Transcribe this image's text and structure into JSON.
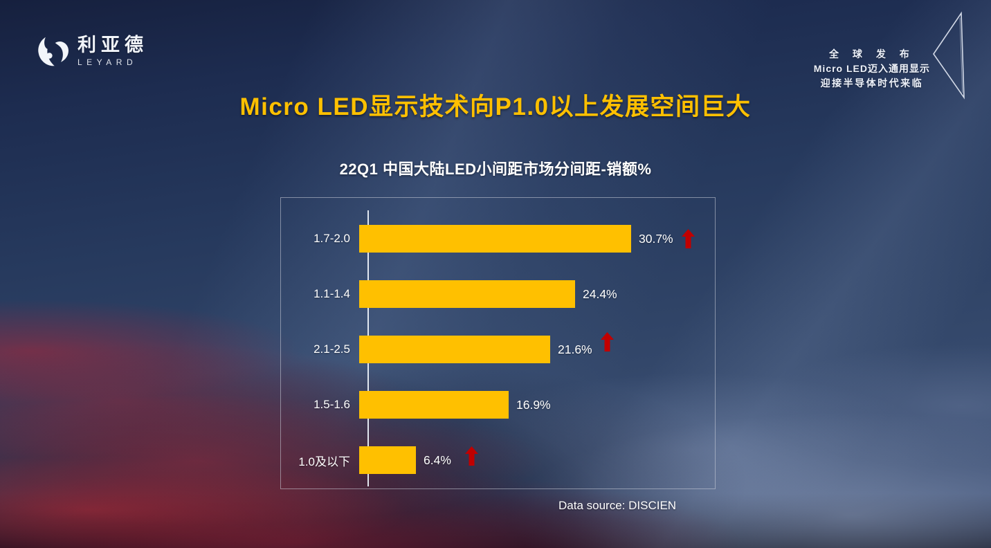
{
  "logo": {
    "name_cn": "利亚德",
    "name_en": "LEYARD"
  },
  "badge": {
    "line1": "全 球 发 布",
    "line2": "Micro LED迈入通用显示",
    "line3": "迎接半导体时代来临"
  },
  "title": "Micro LED显示技术向P1.0以上发展空间巨大",
  "data_source": "Data source: DISCIEN",
  "colors": {
    "bar": "#FFC000",
    "arrow": "#C00000",
    "title": "#FFC000",
    "text": "#FFFFFF"
  },
  "chart_data": {
    "type": "bar",
    "orientation": "horizontal",
    "title": "22Q1 中国大陆LED小间距市场分间距-销额%",
    "categories": [
      "1.7-2.0",
      "1.1-1.4",
      "2.1-2.5",
      "1.5-1.6",
      "1.0及以下"
    ],
    "values": [
      30.7,
      24.4,
      21.6,
      16.9,
      6.4
    ],
    "value_labels": [
      "30.7%",
      "24.4%",
      "21.6%",
      "16.9%",
      "6.4%"
    ],
    "up_arrow": [
      true,
      false,
      true,
      false,
      true
    ],
    "unit": "%",
    "xlim": [
      0,
      39.4
    ],
    "grid": false,
    "legend": false,
    "bar_color": "#FFC000",
    "arrow_color": "#C00000"
  }
}
